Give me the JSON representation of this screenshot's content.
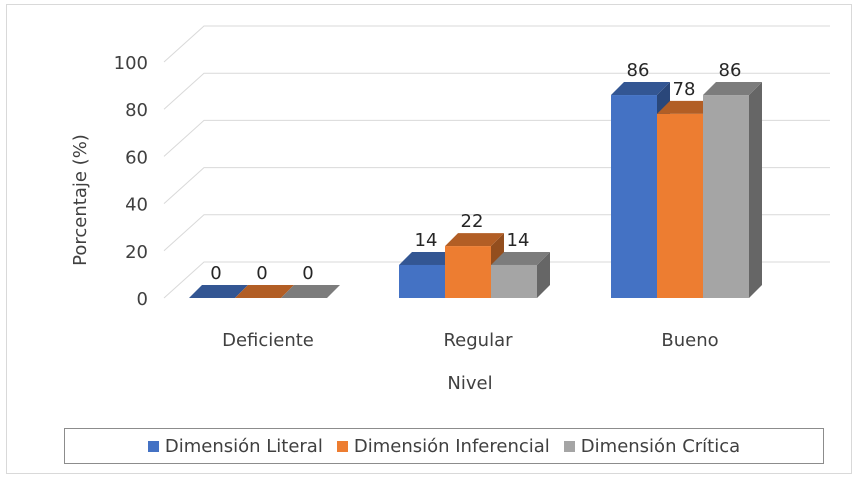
{
  "chart_data": {
    "type": "bar",
    "categories": [
      "Deficiente",
      "Regular",
      "Bueno"
    ],
    "series": [
      {
        "name": "Dimensión Literal",
        "values": [
          0,
          14,
          86
        ],
        "color": "#4472C4"
      },
      {
        "name": "Dimensión Inferencial",
        "values": [
          0,
          22,
          78
        ],
        "color": "#ED7D31"
      },
      {
        "name": "Dimensión Crítica",
        "values": [
          0,
          14,
          86
        ],
        "color": "#A5A5A5"
      }
    ],
    "title": "",
    "xlabel": "Nivel",
    "ylabel": "Porcentaje (%)",
    "ylim": [
      0,
      100
    ],
    "yticks": [
      0,
      20,
      40,
      60,
      80,
      100
    ],
    "grid": true,
    "legend_position": "bottom",
    "style": "3d-clustered-column"
  }
}
